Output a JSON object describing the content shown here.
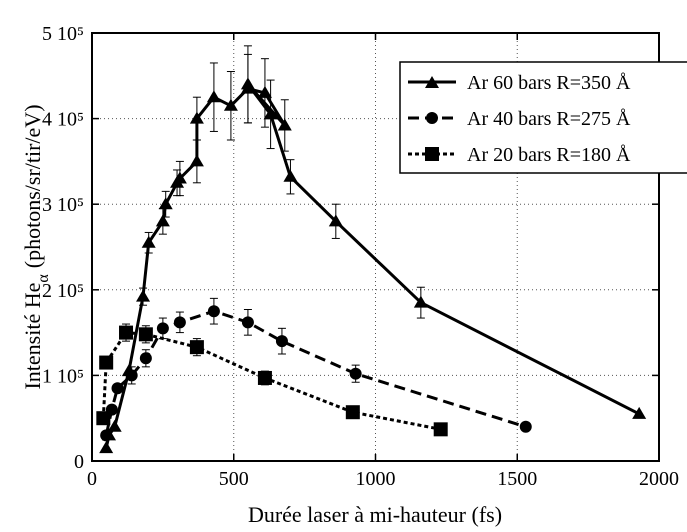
{
  "chart_data": {
    "type": "line",
    "xlabel": "Durée laser à mi-hauteur (fs)",
    "ylabel_main": "Intensité He",
    "ylabel_sub": "α",
    "ylabel_unit": "(photons/sr/tir/eV)",
    "xlim": [
      0,
      2000
    ],
    "ylim": [
      0,
      500000
    ],
    "x_ticks": [
      {
        "value": 0,
        "label": "0"
      },
      {
        "value": 500,
        "label": "500"
      },
      {
        "value": 1000,
        "label": "1000"
      },
      {
        "value": 1500,
        "label": "1500"
      },
      {
        "value": 2000,
        "label": "2000"
      }
    ],
    "y_ticks": [
      {
        "value": 0,
        "label": "0"
      },
      {
        "value": 100000,
        "label": "1 10⁵"
      },
      {
        "value": 200000,
        "label": "2 10⁵"
      },
      {
        "value": 300000,
        "label": "3 10⁵"
      },
      {
        "value": 400000,
        "label": "4 10⁵"
      },
      {
        "value": 500000,
        "label": "5 10⁵"
      }
    ],
    "grid": "dotted",
    "legend_position": "top-right",
    "series": [
      {
        "name": "Ar 60 bars R=350 Å",
        "marker": "triangle",
        "dash": "solid",
        "path": [
          {
            "x": 50,
            "y": 15000,
            "err": 0
          },
          {
            "x": 60,
            "y": 30000,
            "err": 0
          },
          {
            "x": 80,
            "y": 40000,
            "err": 0
          },
          {
            "x": 130,
            "y": 105000,
            "err": 0
          },
          {
            "x": 180,
            "y": 192000,
            "err": 10000
          },
          {
            "x": 200,
            "y": 255000,
            "err": 12000
          },
          {
            "x": 250,
            "y": 280000,
            "err": 15000
          },
          {
            "x": 260,
            "y": 300000,
            "err": 15000
          },
          {
            "x": 300,
            "y": 325000,
            "err": 15000
          },
          {
            "x": 310,
            "y": 330000,
            "err": 20000
          },
          {
            "x": 370,
            "y": 350000,
            "err": 25000
          },
          {
            "x": 370,
            "y": 400000,
            "err": 25000
          },
          {
            "x": 430,
            "y": 425000,
            "err": 40000
          },
          {
            "x": 490,
            "y": 415000,
            "err": 40000
          },
          {
            "x": 550,
            "y": 435000,
            "err": 40000
          },
          {
            "x": 610,
            "y": 430000,
            "err": 40000
          },
          {
            "x": 680,
            "y": 392000,
            "err": 30000
          },
          {
            "x": 550,
            "y": 440000,
            "err": 45000
          },
          {
            "x": 630,
            "y": 405000,
            "err": 40000
          },
          {
            "x": 700,
            "y": 332000,
            "err": 20000
          },
          {
            "x": 860,
            "y": 280000,
            "err": 20000
          },
          {
            "x": 1160,
            "y": 185000,
            "err": 18000
          },
          {
            "x": 1930,
            "y": 55000,
            "err": 0
          }
        ]
      },
      {
        "name": "Ar 40 bars R=275 Å",
        "marker": "circle",
        "dash": "dashed",
        "path": [
          {
            "x": 50,
            "y": 30000,
            "err": 0
          },
          {
            "x": 70,
            "y": 60000,
            "err": 0
          },
          {
            "x": 90,
            "y": 85000,
            "err": 0
          },
          {
            "x": 140,
            "y": 100000,
            "err": 10000
          },
          {
            "x": 190,
            "y": 120000,
            "err": 10000
          },
          {
            "x": 250,
            "y": 155000,
            "err": 12000
          },
          {
            "x": 310,
            "y": 162000,
            "err": 12000
          },
          {
            "x": 430,
            "y": 175000,
            "err": 15000
          },
          {
            "x": 550,
            "y": 162000,
            "err": 15000
          },
          {
            "x": 670,
            "y": 140000,
            "err": 15000
          },
          {
            "x": 930,
            "y": 102000,
            "err": 10000
          },
          {
            "x": 1530,
            "y": 40000,
            "err": 0
          }
        ]
      },
      {
        "name": "Ar 20 bars R=180 Å",
        "marker": "square",
        "dash": "dotted",
        "path": [
          {
            "x": 40,
            "y": 50000,
            "err": 0
          },
          {
            "x": 50,
            "y": 115000,
            "err": 0
          },
          {
            "x": 120,
            "y": 150000,
            "err": 10000
          },
          {
            "x": 190,
            "y": 148000,
            "err": 10000
          },
          {
            "x": 370,
            "y": 133000,
            "err": 10000
          },
          {
            "x": 610,
            "y": 97000,
            "err": 8000
          },
          {
            "x": 920,
            "y": 57000,
            "err": 6000
          },
          {
            "x": 1230,
            "y": 37000,
            "err": 5000
          }
        ]
      }
    ]
  }
}
